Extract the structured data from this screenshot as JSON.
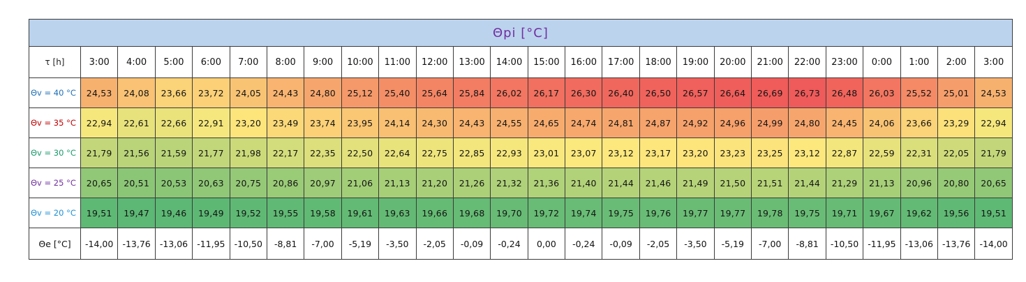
{
  "chart_data": {
    "type": "table",
    "title": "Θpi  [°C]",
    "header_label": "τ [h]",
    "times": [
      "3:00",
      "4:00",
      "5:00",
      "6:00",
      "7:00",
      "8:00",
      "9:00",
      "10:00",
      "11:00",
      "12:00",
      "13:00",
      "14:00",
      "15:00",
      "16:00",
      "17:00",
      "18:00",
      "19:00",
      "20:00",
      "21:00",
      "22:00",
      "23:00",
      "0:00",
      "1:00",
      "2:00",
      "3:00"
    ],
    "series": [
      {
        "name": "Θv = 40 °C",
        "label_color": "#1f6fb5",
        "values": [
          "24,53",
          "24,08",
          "23,66",
          "23,72",
          "24,05",
          "24,43",
          "24,80",
          "25,12",
          "25,40",
          "25,64",
          "25,84",
          "26,02",
          "26,17",
          "26,30",
          "26,40",
          "26,50",
          "26,57",
          "26,64",
          "26,69",
          "26,73",
          "26,48",
          "26,03",
          "25,52",
          "25,01",
          "24,53"
        ]
      },
      {
        "name": "Θv = 35 °C",
        "label_color": "#c00000",
        "values": [
          "22,94",
          "22,61",
          "22,66",
          "22,91",
          "23,20",
          "23,49",
          "23,74",
          "23,95",
          "24,14",
          "24,30",
          "24,43",
          "24,55",
          "24,65",
          "24,74",
          "24,81",
          "24,87",
          "24,92",
          "24,96",
          "24,99",
          "24,80",
          "24,45",
          "24,06",
          "23,66",
          "23,29",
          "22,94"
        ]
      },
      {
        "name": "Θv = 30 °C",
        "label_color": "#1a9a6c",
        "values": [
          "21,79",
          "21,56",
          "21,59",
          "21,77",
          "21,98",
          "22,17",
          "22,35",
          "22,50",
          "22,64",
          "22,75",
          "22,85",
          "22,93",
          "23,01",
          "23,07",
          "23,12",
          "23,17",
          "23,20",
          "23,23",
          "23,25",
          "23,12",
          "22,87",
          "22,59",
          "22,31",
          "22,05",
          "21,79"
        ]
      },
      {
        "name": "Θv = 25 °C",
        "label_color": "#7030a0",
        "values": [
          "20,65",
          "20,51",
          "20,53",
          "20,63",
          "20,75",
          "20,86",
          "20,97",
          "21,06",
          "21,13",
          "21,20",
          "21,26",
          "21,32",
          "21,36",
          "21,40",
          "21,44",
          "21,46",
          "21,49",
          "21,50",
          "21,51",
          "21,44",
          "21,29",
          "21,13",
          "20,96",
          "20,80",
          "20,65"
        ]
      },
      {
        "name": "Θv = 20 °C",
        "label_color": "#1e90d6",
        "values": [
          "19,51",
          "19,47",
          "19,46",
          "19,49",
          "19,52",
          "19,55",
          "19,58",
          "19,61",
          "19,63",
          "19,66",
          "19,68",
          "19,70",
          "19,72",
          "19,74",
          "19,75",
          "19,76",
          "19,77",
          "19,77",
          "19,78",
          "19,75",
          "19,71",
          "19,67",
          "19,62",
          "19,56",
          "19,51"
        ]
      }
    ],
    "outdoor": {
      "name": "Θe [°C]",
      "values": [
        "-14,00",
        "-13,76",
        "-13,06",
        "-11,95",
        "-10,50",
        "-8,81",
        "-7,00",
        "-5,19",
        "-3,50",
        "-2,05",
        "-0,09",
        "-0,24",
        "0,00",
        "-0,24",
        "-0,09",
        "-2,05",
        "-3,50",
        "-5,19",
        "-7,00",
        "-8,81",
        "-10,50",
        "-11,95",
        "-13,06",
        "-13,76",
        "-14,00"
      ]
    },
    "color_scale": {
      "low": "#5cb874",
      "mid": "#fde97d",
      "high": "#ef5a5a"
    }
  }
}
